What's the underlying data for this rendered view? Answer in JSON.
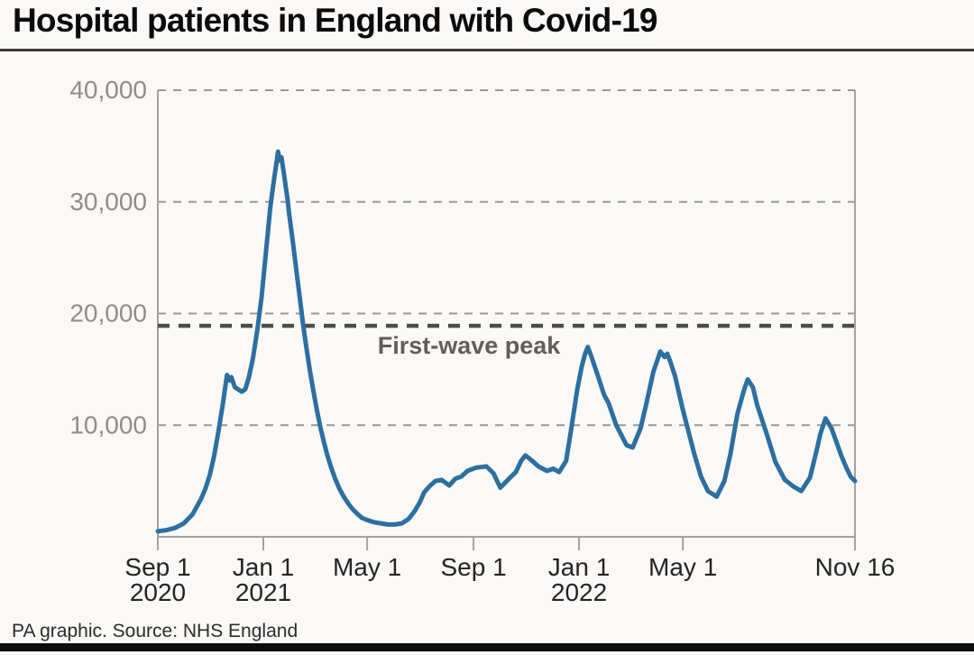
{
  "title": "Hospital patients in England with Covid-19",
  "source": "PA graphic. Source: NHS England",
  "colors": {
    "series_line": "#2d6f9f",
    "annotation_line": "#4c4c4a",
    "annotation_text": "#615d5a",
    "gridline": "#9c9893",
    "axis": "#a6a29d",
    "ytick_text": "#908c88",
    "xtick_text": "#262422",
    "title_text": "#0b0b0b",
    "background": "#faf9f7"
  },
  "chart_data": {
    "type": "line",
    "title": "Hospital patients in England with Covid-19",
    "xlabel": "",
    "ylabel": "",
    "ylim": [
      0,
      40000
    ],
    "x_range": [
      "2020-09-01",
      "2022-11-16"
    ],
    "grid": "dashed-horizontal",
    "legend_position": "none",
    "y_ticks": [
      {
        "value": 40000,
        "label": "40,000"
      },
      {
        "value": 30000,
        "label": "30,000"
      },
      {
        "value": 20000,
        "label": "20,000"
      },
      {
        "value": 10000,
        "label": "10,000"
      }
    ],
    "x_ticks": [
      {
        "date": "2020-09-01",
        "line1": "Sep 1",
        "line2": "2020"
      },
      {
        "date": "2021-01-01",
        "line1": "Jan 1",
        "line2": "2021"
      },
      {
        "date": "2021-05-01",
        "line1": "May 1",
        "line2": ""
      },
      {
        "date": "2021-09-01",
        "line1": "Sep 1",
        "line2": ""
      },
      {
        "date": "2022-01-01",
        "line1": "Jan 1",
        "line2": "2022"
      },
      {
        "date": "2022-05-01",
        "line1": "May 1",
        "line2": ""
      },
      {
        "date": "2022-11-16",
        "line1": "Nov 16",
        "line2": ""
      }
    ],
    "annotation": {
      "label": "First-wave peak",
      "value": 18900,
      "style": "dashed-dark-horizontal"
    },
    "series": [
      {
        "name": "Hospital patients with Covid-19",
        "points": [
          [
            "2020-09-01",
            500
          ],
          [
            "2020-09-11",
            600
          ],
          [
            "2020-09-21",
            800
          ],
          [
            "2020-10-01",
            1200
          ],
          [
            "2020-10-11",
            2000
          ],
          [
            "2020-10-21",
            3400
          ],
          [
            "2020-10-26",
            4300
          ],
          [
            "2020-10-31",
            5500
          ],
          [
            "2020-11-05",
            7200
          ],
          [
            "2020-11-10",
            9400
          ],
          [
            "2020-11-15",
            11800
          ],
          [
            "2020-11-20",
            14500
          ],
          [
            "2020-11-23",
            14000
          ],
          [
            "2020-11-25",
            14300
          ],
          [
            "2020-11-29",
            13400
          ],
          [
            "2020-12-03",
            13200
          ],
          [
            "2020-12-07",
            13000
          ],
          [
            "2020-12-11",
            13200
          ],
          [
            "2020-12-15",
            14200
          ],
          [
            "2020-12-20",
            16000
          ],
          [
            "2020-12-25",
            18500
          ],
          [
            "2020-12-30",
            21500
          ],
          [
            "2021-01-04",
            25500
          ],
          [
            "2021-01-09",
            29500
          ],
          [
            "2021-01-13",
            31800
          ],
          [
            "2021-01-16",
            33400
          ],
          [
            "2021-01-18",
            34500
          ],
          [
            "2021-01-20",
            33700
          ],
          [
            "2021-01-22",
            34000
          ],
          [
            "2021-01-25",
            32400
          ],
          [
            "2021-01-29",
            30200
          ],
          [
            "2021-01-31",
            28800
          ],
          [
            "2021-02-04",
            26500
          ],
          [
            "2021-02-08",
            24000
          ],
          [
            "2021-02-12",
            21500
          ],
          [
            "2021-02-16",
            19000
          ],
          [
            "2021-02-20",
            16800
          ],
          [
            "2021-02-24",
            14800
          ],
          [
            "2021-02-28",
            13000
          ],
          [
            "2021-03-04",
            11300
          ],
          [
            "2021-03-08",
            9800
          ],
          [
            "2021-03-12",
            8500
          ],
          [
            "2021-03-16",
            7300
          ],
          [
            "2021-03-20",
            6300
          ],
          [
            "2021-03-25",
            5200
          ],
          [
            "2021-03-30",
            4300
          ],
          [
            "2021-04-04",
            3600
          ],
          [
            "2021-04-09",
            3000
          ],
          [
            "2021-04-14",
            2500
          ],
          [
            "2021-04-19",
            2100
          ],
          [
            "2021-04-25",
            1700
          ],
          [
            "2021-05-01",
            1500
          ],
          [
            "2021-05-09",
            1300
          ],
          [
            "2021-05-17",
            1200
          ],
          [
            "2021-05-25",
            1100
          ],
          [
            "2021-06-02",
            1100
          ],
          [
            "2021-06-10",
            1200
          ],
          [
            "2021-06-18",
            1600
          ],
          [
            "2021-06-25",
            2300
          ],
          [
            "2021-07-01",
            3100
          ],
          [
            "2021-07-06",
            4000
          ],
          [
            "2021-07-13",
            4600
          ],
          [
            "2021-07-19",
            5000
          ],
          [
            "2021-07-26",
            5100
          ],
          [
            "2021-08-04",
            4600
          ],
          [
            "2021-08-11",
            5200
          ],
          [
            "2021-08-18",
            5400
          ],
          [
            "2021-08-25",
            5900
          ],
          [
            "2021-09-04",
            6200
          ],
          [
            "2021-09-16",
            6300
          ],
          [
            "2021-09-24",
            5700
          ],
          [
            "2021-10-02",
            4400
          ],
          [
            "2021-10-12",
            5200
          ],
          [
            "2021-10-20",
            5800
          ],
          [
            "2021-10-26",
            6800
          ],
          [
            "2021-10-31",
            7300
          ],
          [
            "2021-11-08",
            6800
          ],
          [
            "2021-11-15",
            6300
          ],
          [
            "2021-11-25",
            5900
          ],
          [
            "2021-12-02",
            6100
          ],
          [
            "2021-12-09",
            5800
          ],
          [
            "2021-12-17",
            6800
          ],
          [
            "2021-12-22",
            9200
          ],
          [
            "2021-12-30",
            13200
          ],
          [
            "2022-01-04",
            15200
          ],
          [
            "2022-01-08",
            16400
          ],
          [
            "2022-01-11",
            17000
          ],
          [
            "2022-01-15",
            16200
          ],
          [
            "2022-01-22",
            14600
          ],
          [
            "2022-01-30",
            12700
          ],
          [
            "2022-02-04",
            12000
          ],
          [
            "2022-02-13",
            10000
          ],
          [
            "2022-02-25",
            8200
          ],
          [
            "2022-03-04",
            8000
          ],
          [
            "2022-03-13",
            9700
          ],
          [
            "2022-03-20",
            12000
          ],
          [
            "2022-03-28",
            14800
          ],
          [
            "2022-04-05",
            16600
          ],
          [
            "2022-04-10",
            16100
          ],
          [
            "2022-04-13",
            16400
          ],
          [
            "2022-04-16",
            15800
          ],
          [
            "2022-04-22",
            14400
          ],
          [
            "2022-05-01",
            11400
          ],
          [
            "2022-05-14",
            7500
          ],
          [
            "2022-05-22",
            5400
          ],
          [
            "2022-05-30",
            4100
          ],
          [
            "2022-06-09",
            3600
          ],
          [
            "2022-06-18",
            5000
          ],
          [
            "2022-06-25",
            7400
          ],
          [
            "2022-07-03",
            11000
          ],
          [
            "2022-07-11",
            13200
          ],
          [
            "2022-07-15",
            14100
          ],
          [
            "2022-07-21",
            13400
          ],
          [
            "2022-07-26",
            11800
          ],
          [
            "2022-08-06",
            9200
          ],
          [
            "2022-08-16",
            6700
          ],
          [
            "2022-08-27",
            5100
          ],
          [
            "2022-09-06",
            4500
          ],
          [
            "2022-09-15",
            4100
          ],
          [
            "2022-09-25",
            5300
          ],
          [
            "2022-10-02",
            7500
          ],
          [
            "2022-10-07",
            9200
          ],
          [
            "2022-10-13",
            10600
          ],
          [
            "2022-10-20",
            9700
          ],
          [
            "2022-10-26",
            8400
          ],
          [
            "2022-10-31",
            7300
          ],
          [
            "2022-11-06",
            6200
          ],
          [
            "2022-11-11",
            5400
          ],
          [
            "2022-11-16",
            5000
          ]
        ]
      }
    ]
  }
}
